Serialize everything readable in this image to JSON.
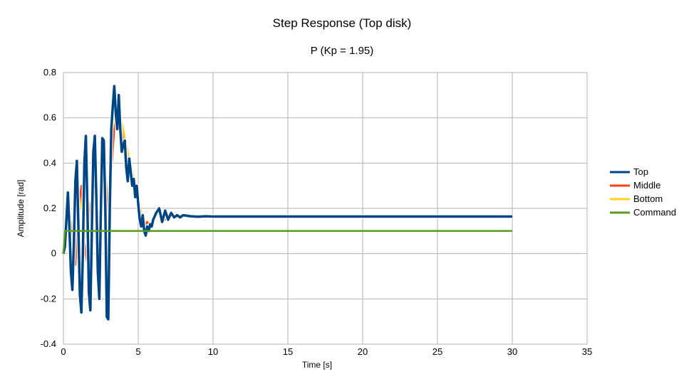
{
  "chart_data": {
    "type": "line",
    "title": "Step Response (Top disk)",
    "subtitle": "P (Kp = 1.95)",
    "xlabel": "Time [s]",
    "ylabel": "Amplitude [rad]",
    "xlim": [
      0,
      35
    ],
    "ylim": [
      -0.4,
      0.8
    ],
    "xticks": [
      0,
      5,
      10,
      15,
      20,
      25,
      30,
      35
    ],
    "yticks": [
      -0.4,
      -0.2,
      0,
      0.2,
      0.4,
      0.6,
      0.8
    ],
    "xtick_labels": [
      "0",
      "5",
      "10",
      "15",
      "20",
      "25",
      "30",
      "35"
    ],
    "ytick_labels": [
      "-0.4",
      "-0.2",
      "0",
      "0.2",
      "0.4",
      "0.6",
      "0.8"
    ],
    "grid": true,
    "legend_position": "right",
    "series": [
      {
        "name": "Top",
        "color": "#004586",
        "x": [
          0,
          0.1,
          0.2,
          0.3,
          0.4,
          0.5,
          0.6,
          0.7,
          0.8,
          0.9,
          1.0,
          1.1,
          1.2,
          1.3,
          1.4,
          1.5,
          1.6,
          1.7,
          1.8,
          1.9,
          2.0,
          2.1,
          2.2,
          2.3,
          2.4,
          2.5,
          2.6,
          2.7,
          2.8,
          2.9,
          3.0,
          3.1,
          3.2,
          3.3,
          3.4,
          3.5,
          3.6,
          3.7,
          3.8,
          3.9,
          4.0,
          4.1,
          4.2,
          4.3,
          4.4,
          4.5,
          4.6,
          4.7,
          4.8,
          4.9,
          5.0,
          5.1,
          5.2,
          5.3,
          5.4,
          5.5,
          5.6,
          5.7,
          5.8,
          5.9,
          6.0,
          6.2,
          6.4,
          6.6,
          6.8,
          7.0,
          7.2,
          7.4,
          7.6,
          7.8,
          8.0,
          8.5,
          9.0,
          9.5,
          10.0,
          11.0,
          12.0,
          15.0,
          20.0,
          25.0,
          30.0
        ],
        "y": [
          0.0,
          0.03,
          0.15,
          0.27,
          0.12,
          -0.08,
          -0.16,
          0.05,
          0.32,
          0.41,
          0.12,
          -0.18,
          -0.26,
          0.0,
          0.4,
          0.52,
          0.22,
          -0.17,
          -0.25,
          0.1,
          0.45,
          0.52,
          0.25,
          -0.08,
          -0.2,
          0.18,
          0.51,
          0.5,
          0.2,
          -0.28,
          -0.29,
          0.2,
          0.55,
          0.65,
          0.74,
          0.62,
          0.55,
          0.7,
          0.55,
          0.45,
          0.48,
          0.5,
          0.38,
          0.32,
          0.42,
          0.36,
          0.3,
          0.33,
          0.25,
          0.3,
          0.22,
          0.15,
          0.12,
          0.17,
          0.1,
          0.08,
          0.12,
          0.1,
          0.13,
          0.12,
          0.15,
          0.18,
          0.2,
          0.14,
          0.19,
          0.15,
          0.18,
          0.16,
          0.17,
          0.16,
          0.17,
          0.165,
          0.163,
          0.165,
          0.164,
          0.164,
          0.164,
          0.164,
          0.164,
          0.164,
          0.164
        ]
      },
      {
        "name": "Middle",
        "color": "#ff420e",
        "x": [
          0,
          0.2,
          0.4,
          0.6,
          0.8,
          1.0,
          1.2,
          1.4,
          1.6,
          1.8,
          2.0,
          2.2,
          2.4,
          2.6,
          2.8,
          3.0,
          3.2,
          3.4,
          3.6,
          3.8,
          4.0,
          4.2,
          4.4,
          4.6,
          4.8,
          5.0,
          5.2,
          5.4,
          5.6,
          5.8,
          6.0,
          6.4,
          6.8,
          7.2,
          7.6,
          8.0,
          9.0,
          10.0,
          11.0,
          12.2
        ],
        "y": [
          0.0,
          0.1,
          0.2,
          0.05,
          -0.05,
          0.2,
          0.3,
          0.05,
          -0.05,
          0.2,
          0.35,
          0.15,
          0.0,
          0.2,
          0.38,
          0.15,
          0.35,
          0.55,
          0.62,
          0.58,
          0.5,
          0.42,
          0.38,
          0.33,
          0.28,
          0.22,
          0.16,
          0.12,
          0.14,
          0.12,
          0.16,
          0.19,
          0.15,
          0.18,
          0.16,
          0.17,
          0.165,
          0.164,
          0.164,
          0.164
        ]
      },
      {
        "name": "Bottom",
        "color": "#ffd320",
        "x": [
          0,
          0.2,
          0.4,
          0.6,
          0.8,
          1.0,
          1.2,
          1.4,
          1.6,
          1.8,
          2.0,
          2.2,
          2.4,
          2.6,
          2.8,
          3.0,
          3.2,
          3.4,
          3.6,
          3.8,
          4.0,
          4.2,
          4.4,
          4.6,
          4.8,
          5.0,
          5.2,
          5.4,
          5.6,
          5.8,
          6.0,
          6.4,
          6.8
        ],
        "y": [
          0.0,
          0.08,
          0.18,
          0.1,
          0.02,
          0.15,
          0.25,
          0.1,
          0.05,
          0.18,
          0.3,
          0.2,
          0.08,
          0.22,
          0.35,
          0.22,
          0.42,
          0.58,
          0.64,
          0.6,
          0.55,
          0.48,
          0.42,
          0.36,
          0.3,
          0.24,
          0.18,
          0.14,
          0.14,
          0.13,
          0.15,
          0.18,
          0.16
        ]
      },
      {
        "name": "Command",
        "color": "#579d1c",
        "x": [
          0,
          0.1,
          30
        ],
        "y": [
          0.0,
          0.1,
          0.1
        ]
      }
    ]
  }
}
